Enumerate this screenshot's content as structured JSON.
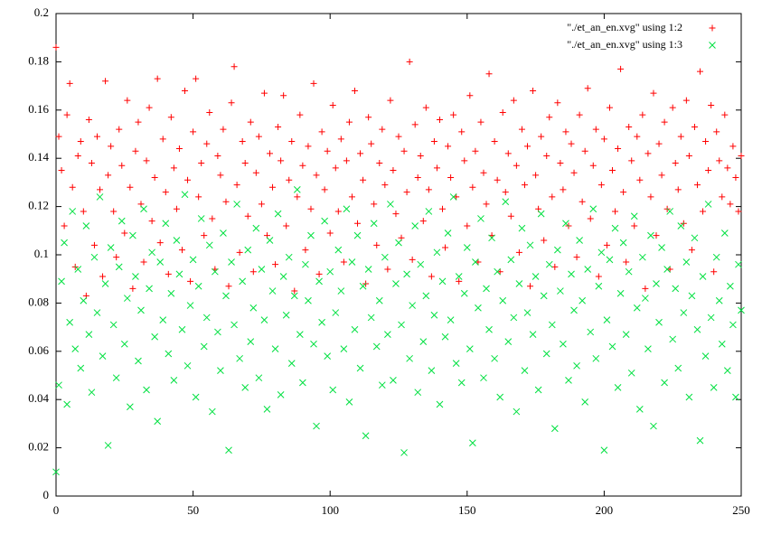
{
  "chart_data": {
    "type": "scatter",
    "xlim": [
      0,
      250
    ],
    "xticks": [
      0,
      50,
      100,
      150,
      200,
      250
    ],
    "ylim": [
      0,
      0.2
    ],
    "yticks": [
      0,
      0.02,
      0.04,
      0.06,
      0.08,
      0.1,
      0.12,
      0.14,
      0.16,
      0.18,
      0.2
    ],
    "legend": "top-right",
    "x": [
      0,
      1,
      2,
      3,
      4,
      5,
      6,
      7,
      8,
      9,
      10,
      11,
      12,
      13,
      14,
      15,
      16,
      17,
      18,
      19,
      20,
      21,
      22,
      23,
      24,
      25,
      26,
      27,
      28,
      29,
      30,
      31,
      32,
      33,
      34,
      35,
      36,
      37,
      38,
      39,
      40,
      41,
      42,
      43,
      44,
      45,
      46,
      47,
      48,
      49,
      50,
      51,
      52,
      53,
      54,
      55,
      56,
      57,
      58,
      59,
      60,
      61,
      62,
      63,
      64,
      65,
      66,
      67,
      68,
      69,
      70,
      71,
      72,
      73,
      74,
      75,
      76,
      77,
      78,
      79,
      80,
      81,
      82,
      83,
      84,
      85,
      86,
      87,
      88,
      89,
      90,
      91,
      92,
      93,
      94,
      95,
      96,
      97,
      98,
      99,
      100,
      101,
      102,
      103,
      104,
      105,
      106,
      107,
      108,
      109,
      110,
      111,
      112,
      113,
      114,
      115,
      116,
      117,
      118,
      119,
      120,
      121,
      122,
      123,
      124,
      125,
      126,
      127,
      128,
      129,
      130,
      131,
      132,
      133,
      134,
      135,
      136,
      137,
      138,
      139,
      140,
      141,
      142,
      143,
      144,
      145,
      146,
      147,
      148,
      149,
      150,
      151,
      152,
      153,
      154,
      155,
      156,
      157,
      158,
      159,
      160,
      161,
      162,
      163,
      164,
      165,
      166,
      167,
      168,
      169,
      170,
      171,
      172,
      173,
      174,
      175,
      176,
      177,
      178,
      179,
      180,
      181,
      182,
      183,
      184,
      185,
      186,
      187,
      188,
      189,
      190,
      191,
      192,
      193,
      194,
      195,
      196,
      197,
      198,
      199,
      200,
      201,
      202,
      203,
      204,
      205,
      206,
      207,
      208,
      209,
      210,
      211,
      212,
      213,
      214,
      215,
      216,
      217,
      218,
      219,
      220,
      221,
      222,
      223,
      224,
      225,
      226,
      227,
      228,
      229,
      230,
      231,
      232,
      233,
      234,
      235,
      236,
      237,
      238,
      239,
      240,
      241,
      242,
      243,
      244,
      245,
      246,
      247,
      248,
      249,
      250
    ],
    "series": [
      {
        "name": "\"./et_an_en.xvg\" using 1:2",
        "color": "#ff0000",
        "marker": "plus",
        "values": [
          0.186,
          0.149,
          0.135,
          0.112,
          0.158,
          0.171,
          0.128,
          0.095,
          0.141,
          0.147,
          0.118,
          0.083,
          0.156,
          0.138,
          0.104,
          0.149,
          0.127,
          0.091,
          0.172,
          0.133,
          0.145,
          0.118,
          0.099,
          0.152,
          0.137,
          0.109,
          0.164,
          0.128,
          0.086,
          0.143,
          0.155,
          0.121,
          0.097,
          0.139,
          0.161,
          0.114,
          0.132,
          0.173,
          0.105,
          0.148,
          0.126,
          0.092,
          0.157,
          0.136,
          0.119,
          0.144,
          0.102,
          0.168,
          0.131,
          0.089,
          0.151,
          0.173,
          0.124,
          0.138,
          0.108,
          0.146,
          0.159,
          0.115,
          0.094,
          0.141,
          0.133,
          0.152,
          0.122,
          0.087,
          0.163,
          0.178,
          0.129,
          0.101,
          0.147,
          0.138,
          0.116,
          0.155,
          0.093,
          0.134,
          0.149,
          0.121,
          0.167,
          0.108,
          0.142,
          0.128,
          0.096,
          0.153,
          0.139,
          0.166,
          0.112,
          0.131,
          0.147,
          0.085,
          0.124,
          0.158,
          0.137,
          0.102,
          0.145,
          0.119,
          0.171,
          0.133,
          0.092,
          0.151,
          0.127,
          0.143,
          0.109,
          0.162,
          0.136,
          0.118,
          0.148,
          0.097,
          0.139,
          0.155,
          0.124,
          0.168,
          0.113,
          0.142,
          0.131,
          0.088,
          0.157,
          0.146,
          0.121,
          0.104,
          0.138,
          0.152,
          0.129,
          0.094,
          0.164,
          0.135,
          0.117,
          0.149,
          0.107,
          0.143,
          0.126,
          0.18,
          0.098,
          0.154,
          0.132,
          0.141,
          0.114,
          0.161,
          0.127,
          0.091,
          0.147,
          0.136,
          0.156,
          0.119,
          0.103,
          0.145,
          0.132,
          0.158,
          0.124,
          0.089,
          0.151,
          0.139,
          0.112,
          0.166,
          0.128,
          0.143,
          0.097,
          0.155,
          0.134,
          0.121,
          0.175,
          0.108,
          0.147,
          0.131,
          0.093,
          0.159,
          0.126,
          0.142,
          0.116,
          0.164,
          0.137,
          0.101,
          0.152,
          0.129,
          0.145,
          0.087,
          0.168,
          0.133,
          0.119,
          0.149,
          0.106,
          0.141,
          0.157,
          0.124,
          0.095,
          0.163,
          0.138,
          0.127,
          0.151,
          0.112,
          0.146,
          0.134,
          0.099,
          0.158,
          0.122,
          0.143,
          0.169,
          0.115,
          0.137,
          0.152,
          0.091,
          0.129,
          0.148,
          0.104,
          0.161,
          0.135,
          0.118,
          0.144,
          0.177,
          0.126,
          0.097,
          0.153,
          0.139,
          0.112,
          0.149,
          0.131,
          0.158,
          0.086,
          0.142,
          0.124,
          0.167,
          0.108,
          0.146,
          0.133,
          0.155,
          0.119,
          0.094,
          0.161,
          0.138,
          0.127,
          0.149,
          0.113,
          0.164,
          0.141,
          0.102,
          0.153,
          0.129,
          0.176,
          0.118,
          0.147,
          0.135,
          0.162,
          0.093,
          0.151,
          0.139,
          0.124,
          0.158,
          0.136,
          0.121,
          0.145,
          0.132,
          0.118,
          0.141
        ]
      },
      {
        "name": "\"./et_an_en.xvg\" using 1:3",
        "color": "#00e040",
        "marker": "cross",
        "values": [
          0.01,
          0.046,
          0.089,
          0.105,
          0.038,
          0.072,
          0.118,
          0.061,
          0.094,
          0.053,
          0.081,
          0.112,
          0.067,
          0.043,
          0.099,
          0.076,
          0.124,
          0.058,
          0.088,
          0.021,
          0.103,
          0.071,
          0.049,
          0.095,
          0.114,
          0.063,
          0.082,
          0.037,
          0.108,
          0.091,
          0.056,
          0.077,
          0.119,
          0.044,
          0.086,
          0.101,
          0.066,
          0.031,
          0.097,
          0.073,
          0.113,
          0.059,
          0.084,
          0.048,
          0.106,
          0.092,
          0.069,
          0.125,
          0.054,
          0.079,
          0.098,
          0.041,
          0.087,
          0.115,
          0.062,
          0.074,
          0.104,
          0.035,
          0.093,
          0.068,
          0.052,
          0.109,
          0.083,
          0.019,
          0.097,
          0.071,
          0.121,
          0.057,
          0.089,
          0.045,
          0.102,
          0.064,
          0.078,
          0.111,
          0.049,
          0.094,
          0.073,
          0.036,
          0.106,
          0.085,
          0.061,
          0.117,
          0.042,
          0.091,
          0.075,
          0.099,
          0.055,
          0.083,
          0.127,
          0.067,
          0.047,
          0.096,
          0.081,
          0.108,
          0.063,
          0.029,
          0.089,
          0.072,
          0.114,
          0.058,
          0.093,
          0.044,
          0.076,
          0.102,
          0.085,
          0.061,
          0.119,
          0.039,
          0.097,
          0.069,
          0.108,
          0.053,
          0.087,
          0.025,
          0.094,
          0.074,
          0.113,
          0.062,
          0.081,
          0.046,
          0.099,
          0.067,
          0.121,
          0.048,
          0.088,
          0.105,
          0.071,
          0.018,
          0.092,
          0.057,
          0.079,
          0.112,
          0.043,
          0.096,
          0.064,
          0.083,
          0.118,
          0.052,
          0.075,
          0.101,
          0.038,
          0.089,
          0.066,
          0.109,
          0.073,
          0.124,
          0.055,
          0.091,
          0.047,
          0.084,
          0.103,
          0.061,
          0.022,
          0.097,
          0.078,
          0.115,
          0.049,
          0.086,
          0.069,
          0.107,
          0.057,
          0.093,
          0.041,
          0.081,
          0.122,
          0.064,
          0.098,
          0.074,
          0.035,
          0.088,
          0.111,
          0.052,
          0.076,
          0.104,
          0.067,
          0.091,
          0.044,
          0.117,
          0.083,
          0.059,
          0.096,
          0.071,
          0.028,
          0.102,
          0.085,
          0.063,
          0.113,
          0.048,
          0.092,
          0.077,
          0.054,
          0.106,
          0.081,
          0.039,
          0.094,
          0.068,
          0.119,
          0.057,
          0.087,
          0.101,
          0.019,
          0.073,
          0.098,
          0.062,
          0.111,
          0.045,
          0.084,
          0.105,
          0.067,
          0.093,
          0.051,
          0.116,
          0.078,
          0.036,
          0.099,
          0.082,
          0.061,
          0.108,
          0.029,
          0.088,
          0.072,
          0.103,
          0.047,
          0.094,
          0.118,
          0.065,
          0.086,
          0.053,
          0.112,
          0.076,
          0.097,
          0.041,
          0.083,
          0.107,
          0.069,
          0.023,
          0.091,
          0.058,
          0.121,
          0.074,
          0.045,
          0.099,
          0.081,
          0.063,
          0.109,
          0.052,
          0.087,
          0.071,
          0.041,
          0.096,
          0.077
        ]
      }
    ]
  }
}
